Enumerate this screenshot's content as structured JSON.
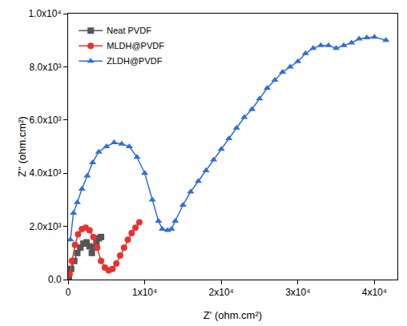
{
  "chart_data": {
    "type": "line",
    "x_label": "Z' (ohm.cm²)",
    "y_label": "Z'' (ohm.cm²)",
    "xlim": [
      0,
      43000
    ],
    "ylim": [
      0,
      10000
    ],
    "xticks": [
      {
        "value": 0,
        "label": "0"
      },
      {
        "value": 10000,
        "label": "1x10⁴"
      },
      {
        "value": 20000,
        "label": "2x10⁴"
      },
      {
        "value": 30000,
        "label": "3x10⁴"
      },
      {
        "value": 40000,
        "label": "4x10⁴"
      }
    ],
    "yticks": [
      {
        "value": 0,
        "label": "0.0"
      },
      {
        "value": 2000,
        "label": "2.0x10³"
      },
      {
        "value": 4000,
        "label": "4.0x10³"
      },
      {
        "value": 6000,
        "label": "6.0x10³"
      },
      {
        "value": 8000,
        "label": "8.0x10³"
      },
      {
        "value": 10000,
        "label": "1.0x10⁴"
      }
    ],
    "grid": false,
    "legend": "top-left",
    "series": [
      {
        "name": "Neat PVDF",
        "color": "#555555",
        "marker": "square",
        "line_style": "solid",
        "x": [
          100,
          400,
          800,
          1200,
          1600,
          2000,
          2400,
          2800,
          3100,
          3400,
          3700,
          4000,
          4300
        ],
        "values": [
          100,
          400,
          700,
          1000,
          1200,
          1350,
          1400,
          1250,
          1000,
          1200,
          1400,
          1550,
          1600
        ]
      },
      {
        "name": "MLDH@PVDF",
        "color": "#e8322d",
        "marker": "circle",
        "line_style": "solid",
        "x": [
          200,
          500,
          900,
          1300,
          1800,
          2300,
          2800,
          3300,
          3800,
          4300,
          4800,
          5300,
          5800,
          6300,
          6800,
          7300,
          7800,
          8300,
          8800,
          9300
        ],
        "values": [
          200,
          700,
          1300,
          1700,
          1900,
          1950,
          1850,
          1600,
          1200,
          700,
          450,
          350,
          400,
          600,
          900,
          1200,
          1500,
          1750,
          1950,
          2150
        ]
      },
      {
        "name": "ZLDH@PVDF",
        "color": "#2f6fd6",
        "marker": "triangle-up",
        "line_style": "solid",
        "x": [
          300,
          700,
          1200,
          1800,
          2500,
          3200,
          4000,
          5000,
          6000,
          7000,
          8000,
          9000,
          10000,
          11000,
          11800,
          12300,
          13000,
          13500,
          14000,
          15000,
          16000,
          17000,
          18000,
          19000,
          20000,
          21000,
          22000,
          23000,
          24000,
          25000,
          26000,
          27000,
          28000,
          29000,
          30000,
          31000,
          32000,
          33000,
          34000,
          35000,
          36000,
          37000,
          38000,
          39000,
          40000,
          41500
        ],
        "values": [
          1500,
          2500,
          2900,
          3400,
          3900,
          4400,
          4800,
          5000,
          5150,
          5100,
          5000,
          4600,
          4000,
          3000,
          2200,
          1900,
          1850,
          1900,
          2200,
          2800,
          3300,
          3700,
          4100,
          4500,
          4900,
          5300,
          5700,
          6100,
          6400,
          6800,
          7200,
          7500,
          7800,
          8000,
          8200,
          8500,
          8700,
          8800,
          8800,
          8700,
          8800,
          8900,
          9050,
          9100,
          9120,
          9000
        ]
      }
    ]
  }
}
